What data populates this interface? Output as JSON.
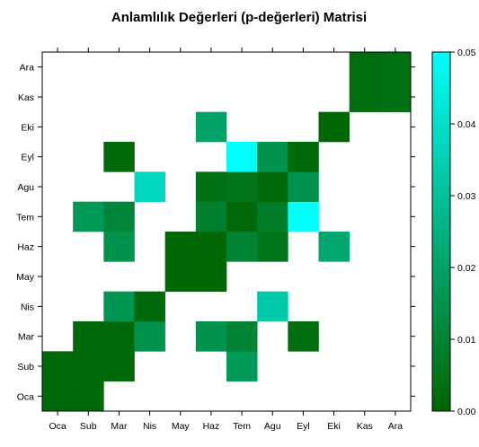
{
  "chart_data": {
    "type": "heatmap",
    "title": "Anlamlılık Değerleri (p-değerleri) Matrisi",
    "x_categories": [
      "Oca",
      "Sub",
      "Mar",
      "Nis",
      "May",
      "Haz",
      "Tem",
      "Agu",
      "Eyl",
      "Eki",
      "Kas",
      "Ara"
    ],
    "y_categories": [
      "Oca",
      "Sub",
      "Mar",
      "Nis",
      "May",
      "Haz",
      "Tem",
      "Agu",
      "Eyl",
      "Eki",
      "Kas",
      "Ara"
    ],
    "value_range": [
      0,
      0.05
    ],
    "colorbar_ticks": [
      {
        "value": 0.0,
        "label": "0.00"
      },
      {
        "value": 0.01,
        "label": "0.01"
      },
      {
        "value": 0.02,
        "label": "0.02"
      },
      {
        "value": 0.03,
        "label": "0.03"
      },
      {
        "value": 0.04,
        "label": "0.04"
      },
      {
        "value": 0.05,
        "label": "0.05"
      }
    ],
    "colors": {
      "low": "#006400",
      "high": "#00FFFF"
    },
    "cells": [
      {
        "x": "Oca",
        "y": "Oca",
        "value": 0.002
      },
      {
        "x": "Sub",
        "y": "Oca",
        "value": 0.002
      },
      {
        "x": "Oca",
        "y": "Sub",
        "value": 0.002
      },
      {
        "x": "Sub",
        "y": "Sub",
        "value": 0.002
      },
      {
        "x": "Mar",
        "y": "Sub",
        "value": 0.002
      },
      {
        "x": "Tem",
        "y": "Sub",
        "value": 0.017
      },
      {
        "x": "Sub",
        "y": "Mar",
        "value": 0.002
      },
      {
        "x": "Mar",
        "y": "Mar",
        "value": 0.002
      },
      {
        "x": "Nis",
        "y": "Mar",
        "value": 0.015
      },
      {
        "x": "Haz",
        "y": "Mar",
        "value": 0.015
      },
      {
        "x": "Tem",
        "y": "Mar",
        "value": 0.01
      },
      {
        "x": "Eyl",
        "y": "Mar",
        "value": 0.003
      },
      {
        "x": "Mar",
        "y": "Nis",
        "value": 0.016
      },
      {
        "x": "Nis",
        "y": "Nis",
        "value": 0.002
      },
      {
        "x": "Agu",
        "y": "Nis",
        "value": 0.033
      },
      {
        "x": "May",
        "y": "May",
        "value": 0.001
      },
      {
        "x": "Haz",
        "y": "May",
        "value": 0.001
      },
      {
        "x": "Mar",
        "y": "Haz",
        "value": 0.015
      },
      {
        "x": "May",
        "y": "Haz",
        "value": 0.001
      },
      {
        "x": "Haz",
        "y": "Haz",
        "value": 0.001
      },
      {
        "x": "Tem",
        "y": "Haz",
        "value": 0.01
      },
      {
        "x": "Agu",
        "y": "Haz",
        "value": 0.005
      },
      {
        "x": "Eki",
        "y": "Haz",
        "value": 0.022
      },
      {
        "x": "Sub",
        "y": "Tem",
        "value": 0.017
      },
      {
        "x": "Mar",
        "y": "Tem",
        "value": 0.011
      },
      {
        "x": "Haz",
        "y": "Tem",
        "value": 0.009
      },
      {
        "x": "Tem",
        "y": "Tem",
        "value": 0.002
      },
      {
        "x": "Agu",
        "y": "Tem",
        "value": 0.008
      },
      {
        "x": "Eyl",
        "y": "Tem",
        "value": 0.05
      },
      {
        "x": "Nis",
        "y": "Agu",
        "value": 0.037
      },
      {
        "x": "Haz",
        "y": "Agu",
        "value": 0.004
      },
      {
        "x": "Tem",
        "y": "Agu",
        "value": 0.005
      },
      {
        "x": "Agu",
        "y": "Agu",
        "value": 0.002
      },
      {
        "x": "Eyl",
        "y": "Agu",
        "value": 0.015
      },
      {
        "x": "Mar",
        "y": "Eyl",
        "value": 0.002
      },
      {
        "x": "Tem",
        "y": "Eyl",
        "value": 0.05
      },
      {
        "x": "Agu",
        "y": "Eyl",
        "value": 0.015
      },
      {
        "x": "Eyl",
        "y": "Eyl",
        "value": 0.002
      },
      {
        "x": "Haz",
        "y": "Eki",
        "value": 0.02
      },
      {
        "x": "Eki",
        "y": "Eki",
        "value": 0.001
      },
      {
        "x": "Kas",
        "y": "Kas",
        "value": 0.003
      },
      {
        "x": "Ara",
        "y": "Kas",
        "value": 0.004
      },
      {
        "x": "Kas",
        "y": "Ara",
        "value": 0.003
      },
      {
        "x": "Ara",
        "y": "Ara",
        "value": 0.004
      }
    ],
    "grid": false,
    "legend": "right"
  }
}
